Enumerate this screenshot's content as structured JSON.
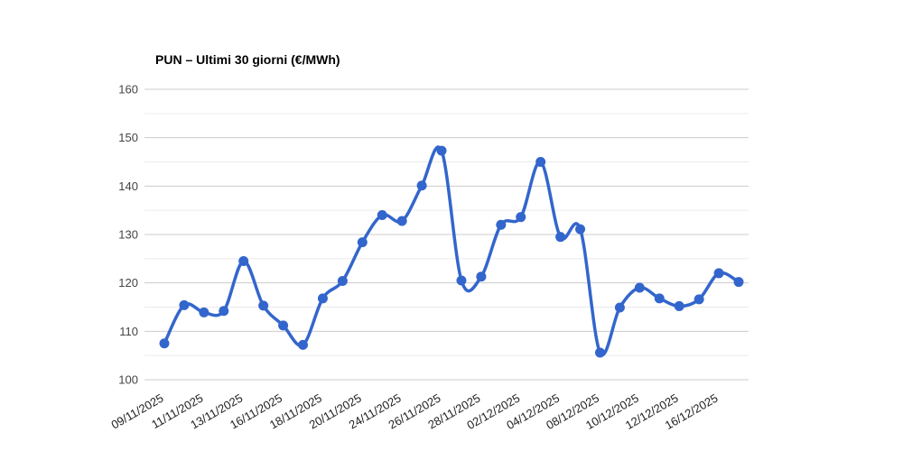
{
  "page": {
    "background": "#ffffff"
  },
  "chart_data": {
    "type": "line",
    "title": "PUN – Ultimi 30 giorni (€/MWh)",
    "curve": "smooth",
    "legend": "none",
    "grid": true,
    "ylim": [
      100,
      160
    ],
    "y_ticks": [
      100,
      110,
      120,
      130,
      140,
      150,
      160
    ],
    "y_minor_ticks": [
      105,
      115,
      125,
      135,
      145,
      155
    ],
    "x_tick_labels": [
      "09/11/2025",
      "11/11/2025",
      "13/11/2025",
      "16/11/2025",
      "18/11/2025",
      "20/11/2025",
      "24/11/2025",
      "26/11/2025",
      "28/11/2025",
      "02/12/2025",
      "04/12/2025",
      "08/12/2025",
      "10/12/2025",
      "12/12/2025",
      "16/12/2025"
    ],
    "x_label_every": 2,
    "values": [
      107.5,
      115.4,
      113.9,
      114.2,
      124.5,
      115.3,
      111.2,
      107.2,
      116.8,
      120.4,
      128.4,
      134.0,
      132.8,
      140.1,
      147.3,
      120.5,
      121.3,
      132.0,
      133.6,
      145.0,
      129.5,
      131.1,
      105.6,
      114.9,
      119.0,
      116.8,
      115.2,
      116.6,
      122.0,
      120.2
    ],
    "colors": {
      "series": "#3366cc",
      "grid_major": "#cccccc",
      "grid_minor": "#ebebeb",
      "y_label_text": "#444444",
      "x_label_text": "#222222",
      "title_text": "#000000"
    }
  }
}
